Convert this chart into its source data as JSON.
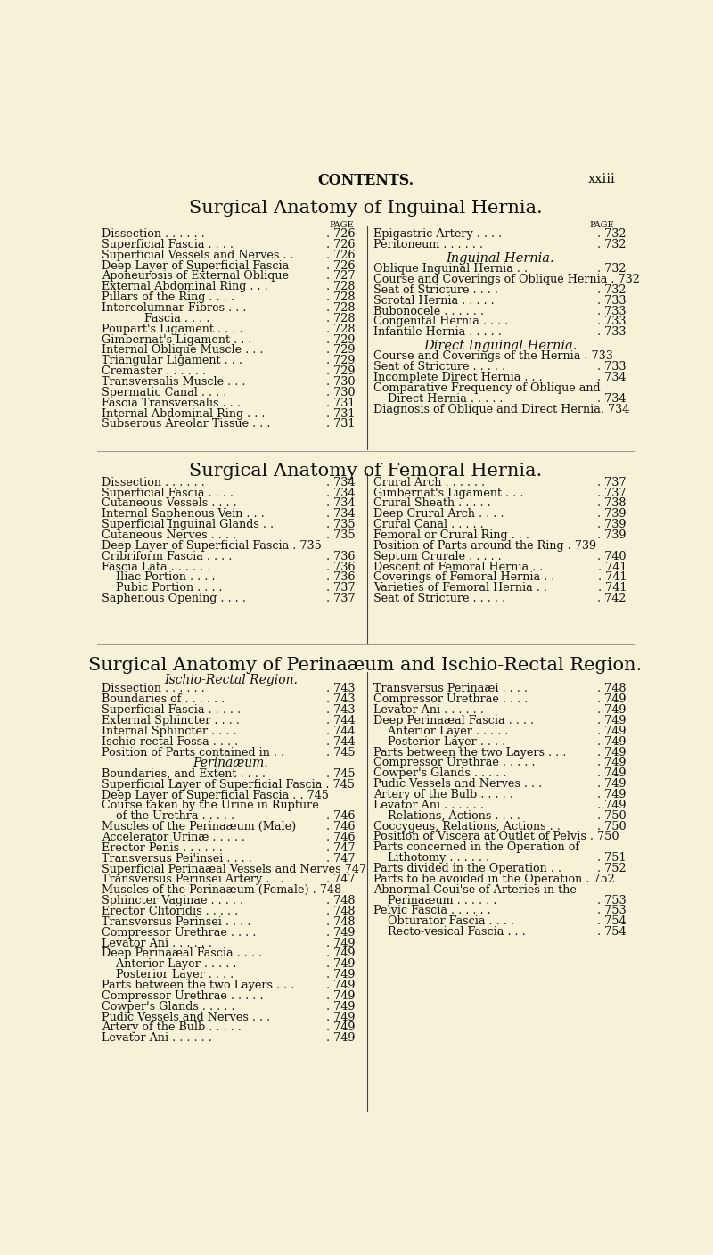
{
  "bg_color": "#f5f2d8",
  "text_color": "#1a1a1a",
  "header_text": "CONTENTS.",
  "page_num": "xxiii",
  "section1_title": "Surgical Anatomy of Inguinal Hernia.",
  "section2_title": "Surgical Anatomy of Femoral Hernia.",
  "section3_title": "Surgical Anatomy of Perinaæum and Ischio-Rectal Region.",
  "section3_sub": "Ischio-Rectal Region.",
  "section3_sub2": "Perinaæum.",
  "s1_left": [
    [
      "Dissection . . . . . .",
      "726"
    ],
    [
      "Superficial Fascia . . . .",
      "726"
    ],
    [
      "Superficial Vessels and Nerves . .",
      "726"
    ],
    [
      "Deep Layer of Superficial Fascia",
      "726"
    ],
    [
      "Aponeurosis of External Oblique",
      "727"
    ],
    [
      "External Abdominal Ring . . .",
      "728"
    ],
    [
      "Pillars of the Ring . . . .",
      "728"
    ],
    [
      "Intercolumnar Fibres . . .",
      "728"
    ],
    [
      "            Fascia . . . .",
      "728"
    ],
    [
      "Poupart's Ligament . . . .",
      "728"
    ],
    [
      "Gimbernat's Ligament . . .",
      "729"
    ],
    [
      "Internal Oblique Muscle . . .",
      "729"
    ],
    [
      "Triangular Ligament . . .",
      "729"
    ],
    [
      "Cremaster . . . . . .",
      "729"
    ],
    [
      "Transversalis Muscle . . .",
      "730"
    ],
    [
      "Spermatic Canal . . . .",
      "730"
    ],
    [
      "Fascia Transversalis . . .",
      "731"
    ],
    [
      "Internal Abdominal Ring . . .",
      "731"
    ],
    [
      "Subserous Areolar Tissue . . .",
      "731"
    ]
  ],
  "s1_right_pre": [
    [
      "Epigastric Artery . . . .",
      "732"
    ],
    [
      "Peritoneum . . . . . .",
      "732"
    ]
  ],
  "s1_inguinal_header": "Inguinal Hernia.",
  "s1_right_oblique": [
    [
      "Oblique Inguinal Hernia . .",
      "732"
    ],
    [
      "Course and Coverings of Oblique Hernia . 732",
      ""
    ],
    [
      "Seat of Stricture . . . .",
      "732"
    ],
    [
      "Scrotal Hernia . . . . .",
      "733"
    ],
    [
      "Bubonocele . . . . . .",
      "733"
    ],
    [
      "Congenital Hernia . . . .",
      "733"
    ],
    [
      "Infantile Hernia . . . . .",
      "733"
    ]
  ],
  "s1_direct_header": "Direct Inguinal Hernia.",
  "s1_right_direct": [
    [
      "Course and Coverings of the Hernia . 733",
      ""
    ],
    [
      "Seat of Stricture . . . . .",
      "733"
    ],
    [
      "Incomplete Direct Hernia . . .",
      "734"
    ],
    [
      "Comparative Frequency of Oblique and",
      ""
    ],
    [
      "    Direct Hernia . . . . .",
      "734"
    ],
    [
      "Diagnosis of Oblique and Direct Hernia. 734",
      ""
    ]
  ],
  "s2_left": [
    [
      "Dissection . . . . . .",
      "734"
    ],
    [
      "Superficial Fascia . . . .",
      "734"
    ],
    [
      "Cutaneous Vessels . . . .",
      "734"
    ],
    [
      "Internal Saphenous Vein . . .",
      "734"
    ],
    [
      "Superficial Inguinal Glands . .",
      "735"
    ],
    [
      "Cutaneous Nerves . . . .",
      "735"
    ],
    [
      "Deep Layer of Superficial Fascia . 735",
      ""
    ],
    [
      "Cribriform Fascia . . . .",
      "736"
    ],
    [
      "Fascia Lata . . . . . .",
      "736"
    ],
    [
      "    Iliac Portion . . . .",
      "736"
    ],
    [
      "    Pubic Portion . . . .",
      "737"
    ],
    [
      "Saphenous Opening . . . .",
      "737"
    ]
  ],
  "s2_right": [
    [
      "Crural Arch . . . . . .",
      "737"
    ],
    [
      "Gimbernat's Ligament . . .",
      "737"
    ],
    [
      "Crural Sheath . . . . .",
      "738"
    ],
    [
      "Deep Crural Arch . . . .",
      "739"
    ],
    [
      "Crural Canal . . . . .",
      "739"
    ],
    [
      "Femoral or Crural Ring . . .",
      "739"
    ],
    [
      "Position of Parts around the Ring . 739",
      ""
    ],
    [
      "Septum Crurale . . . . .",
      "740"
    ],
    [
      "Descent of Femoral Hernia . .",
      "741"
    ],
    [
      "Coverings of Femoral Hernia . .",
      "741"
    ],
    [
      "Varieties of Femoral Hernia . .",
      "741"
    ],
    [
      "Seat of Stricture . . . . .",
      "742"
    ]
  ],
  "s3_left": [
    [
      "Dissection . . . . . .",
      "743"
    ],
    [
      "Boundaries of . . . . . .",
      "743"
    ],
    [
      "Superficial Fascia . . . . .",
      "743"
    ],
    [
      "External Sphincter . . . .",
      "744"
    ],
    [
      "Internal Sphincter . . . .",
      "744"
    ],
    [
      "Ischio-rectal Fossa . . . .",
      "744"
    ],
    [
      "Position of Parts contained in . .",
      "745"
    ],
    [
      "Boundaries, and Extent . . . .",
      "745"
    ],
    [
      "Superficial Layer of Superficial Fascia . 745",
      ""
    ],
    [
      "Deep Layer of Superficial Fascia . . 745",
      ""
    ],
    [
      "Course taken by the Urine in Rupture",
      ""
    ],
    [
      "    of the Urethra . . . . .",
      "746"
    ],
    [
      "Muscles of the Perinaæum (Male)",
      "746"
    ],
    [
      "Accelerator Urinæ . . . . .",
      "746"
    ],
    [
      "Erector Penis . . . . . .",
      "747"
    ],
    [
      "Transversus Pei'insei . . . .",
      "747"
    ],
    [
      "Superficial Perinaæal Vessels and Nerves 747",
      ""
    ],
    [
      "Transversus Perinsei Artery . . .",
      "747"
    ],
    [
      "Muscles of the Perinaæum (Female) . 748",
      ""
    ],
    [
      "Sphincter Vaginae . . . . .",
      "748"
    ],
    [
      "Erector Clitoridis . . . . .",
      "748"
    ],
    [
      "Transversus Perinsei . . . .",
      "748"
    ],
    [
      "Compressor Urethrae . . . .",
      "749"
    ],
    [
      "Levator Ani . . . . . .",
      "749"
    ],
    [
      "Deep Perinaæal Fascia . . . .",
      "749"
    ],
    [
      "    Anterior Layer . . . . .",
      "749"
    ],
    [
      "    Posterior Layer . . . .",
      "749"
    ],
    [
      "Parts between the two Layers . . .",
      "749"
    ],
    [
      "Compressor Urethrae . . . . .",
      "749"
    ],
    [
      "Cowper's Glands . . . . .",
      "749"
    ],
    [
      "Pudic Vessels and Nerves . . .",
      "749"
    ],
    [
      "Artery of the Bulb . . . . .",
      "749"
    ],
    [
      "Levator Ani . . . . . .",
      "749"
    ]
  ],
  "s3_right": [
    [
      "Transversus Perinaæi . . . .",
      "748"
    ],
    [
      "Compressor Urethrae . . . .",
      "749"
    ],
    [
      "Levator Ani . . . . . .",
      "749"
    ],
    [
      "Deep Perinaæal Fascia . . . .",
      "749"
    ],
    [
      "    Anterior Layer . . . . .",
      "749"
    ],
    [
      "    Posterior Layer . . . .",
      "749"
    ],
    [
      "Parts between the two Layers . . .",
      "749"
    ],
    [
      "Compressor Urethrae . . . . .",
      "749"
    ],
    [
      "Cowper's Glands . . . . .",
      "749"
    ],
    [
      "Pudic Vessels and Nerves . . .",
      "749"
    ],
    [
      "Artery of the Bulb . . . . .",
      "749"
    ],
    [
      "Levator Ani . . . . . .",
      "749"
    ],
    [
      "    Relations, Actions . . . .",
      "750"
    ],
    [
      "Coccygeus, Relations, Actions . .",
      "750"
    ],
    [
      "Position of Viscera at Outlet of Pelvis . 750",
      ""
    ],
    [
      "Parts concerned in the Operation of",
      ""
    ],
    [
      "    Lithotomy . . . . . .",
      "751"
    ],
    [
      "Parts divided in the Operation . .",
      "752"
    ],
    [
      "Parts to be avoided in the Operation . 752",
      ""
    ],
    [
      "Abnormal Coui'se of Arteries in the",
      ""
    ],
    [
      "    Perinaæum . . . . . .",
      "753"
    ],
    [
      "Pelvic Fascia . . . . . .",
      "753"
    ],
    [
      "    Obturator Fascia . . . .",
      "754"
    ],
    [
      "    Recto-vesical Fascia . . .",
      "754"
    ]
  ]
}
